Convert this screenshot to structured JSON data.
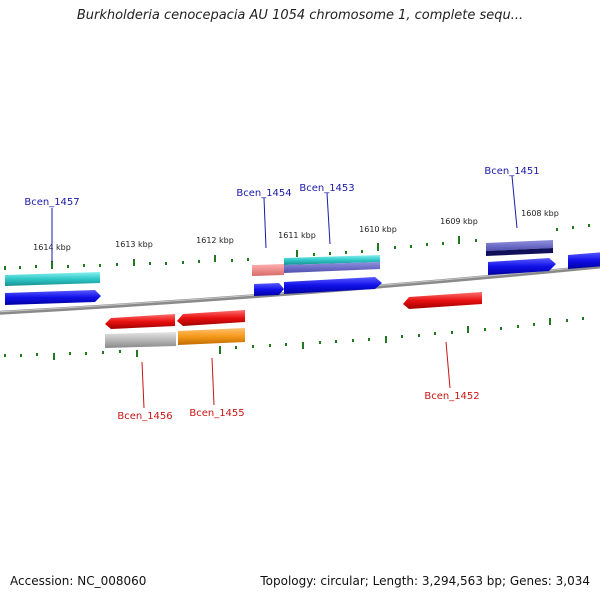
{
  "title": "Burkholderia cenocepacia AU 1054 chromosome 1, complete sequ...",
  "footer": {
    "accession": "Accession: NC_008060",
    "summary": "Topology: circular; Length: 3,294,563 bp; Genes: 3,034"
  },
  "scale_labels": [
    "1614 kbp",
    "1613 kbp",
    "1612 kbp",
    "1611 kbp",
    "1610 kbp",
    "1609 kbp",
    "1608 kbp"
  ],
  "gene_labels": {
    "top": [
      "Bcen_1457",
      "Bcen_1454",
      "Bcen_1453",
      "Bcen_1451"
    ],
    "bottom": [
      "Bcen_1456",
      "Bcen_1455",
      "Bcen_1452"
    ]
  },
  "colors": {
    "top_label": "#1a1aa8",
    "bottom_label": "#c81414",
    "tick": "#1f7a1f",
    "blue": "#1010e0",
    "cyan": "#30c8c8",
    "red": "#e01010",
    "gray": "#b4b4b4",
    "orange": "#f59a1a",
    "salmon": "#ee8a8a",
    "purple": "#6060c0",
    "backbone": "#808080"
  }
}
